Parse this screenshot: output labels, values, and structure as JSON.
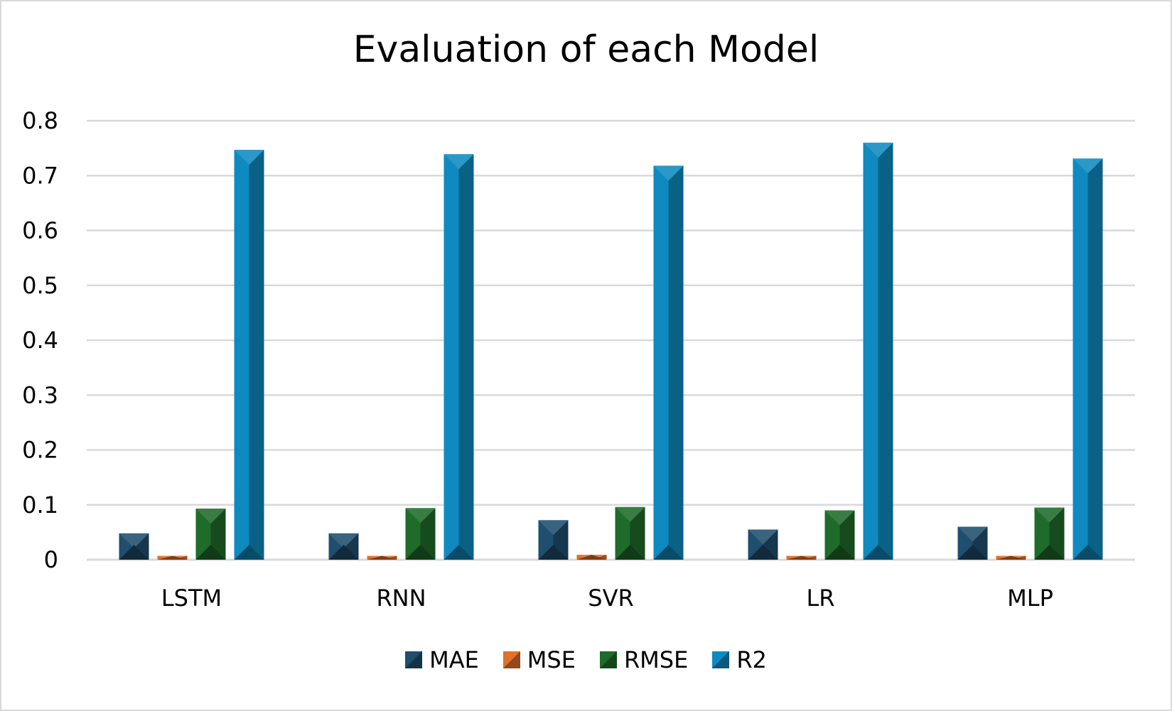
{
  "chart_data": {
    "type": "bar",
    "title": "Evaluation of each Model",
    "xlabel": "",
    "ylabel": "",
    "ylim": [
      0,
      0.8
    ],
    "yticks": [
      "0",
      "0.1",
      "0.2",
      "0.3",
      "0.4",
      "0.5",
      "0.6",
      "0.7",
      "0.8"
    ],
    "grid": true,
    "legend_position": "bottom",
    "categories": [
      "LSTM",
      "RNN",
      "SVR",
      "LR",
      "MLP"
    ],
    "series": [
      {
        "name": "MAE",
        "color": "#1f4e6e",
        "values": [
          0.048,
          0.048,
          0.072,
          0.055,
          0.06
        ]
      },
      {
        "name": "MSE",
        "color": "#e0702a",
        "values": [
          0.007,
          0.007,
          0.009,
          0.007,
          0.007
        ]
      },
      {
        "name": "RMSE",
        "color": "#1e6b2a",
        "values": [
          0.093,
          0.094,
          0.096,
          0.09,
          0.095
        ]
      },
      {
        "name": "R2",
        "color": "#0e8ac0",
        "values": [
          0.747,
          0.739,
          0.718,
          0.76,
          0.731
        ]
      }
    ]
  }
}
